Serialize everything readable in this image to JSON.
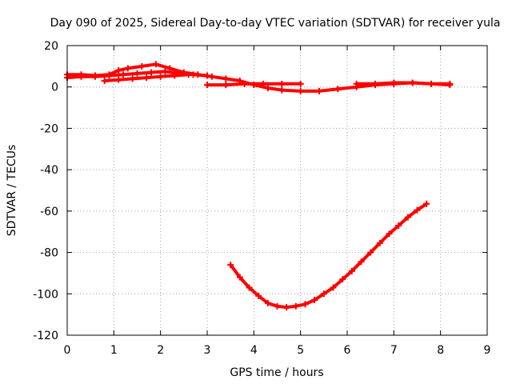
{
  "chart_data": {
    "type": "scatter",
    "title": "Day 090 of 2025, Sidereal Day-to-day VTEC variation (SDTVAR) for receiver yula",
    "xlabel": "GPS time / hours",
    "ylabel": "SDTVAR / TECUs",
    "xlim": [
      0,
      9
    ],
    "ylim": [
      -120,
      20
    ],
    "xticks": [
      0,
      1,
      2,
      3,
      4,
      5,
      6,
      7,
      8,
      9
    ],
    "yticks": [
      -120,
      -100,
      -80,
      -60,
      -40,
      -20,
      0,
      20
    ],
    "x_tick_labels": [
      "0",
      "1",
      "2",
      "3",
      "4",
      "5",
      "6",
      "7",
      "8",
      "9"
    ],
    "y_tick_labels": [
      "-120",
      "-100",
      "-80",
      "-60",
      "-40",
      "-20",
      "0",
      "20"
    ],
    "grid": true,
    "legend": "none",
    "marker": "plus",
    "series_color": "#ff0000",
    "series": [
      {
        "name": "track-a",
        "x": [
          0.0,
          0.3,
          0.6,
          0.9,
          1.1,
          1.3,
          1.6,
          1.9,
          2.2,
          2.5,
          2.8,
          3.1,
          3.4,
          3.7,
          4.0,
          4.3,
          4.6,
          5.0,
          5.4,
          5.8,
          6.2,
          6.6,
          7.0,
          7.4,
          7.8,
          8.2
        ],
        "y": [
          6,
          6,
          5.5,
          6,
          8,
          9,
          10,
          11,
          9,
          7,
          6,
          5,
          4,
          3,
          1,
          -0.5,
          -1.5,
          -2,
          -2,
          -1,
          0,
          1,
          1.5,
          2,
          1.5,
          1
        ]
      },
      {
        "name": "track-b",
        "x": [
          0.0,
          0.3,
          0.6,
          0.9,
          1.2,
          1.5,
          1.8,
          2.1,
          2.4,
          2.7,
          3.0
        ],
        "y": [
          4.5,
          5,
          5,
          5.5,
          6,
          6.5,
          7,
          7.5,
          6.5,
          6,
          5.5
        ]
      },
      {
        "name": "track-c",
        "x": [
          0.8,
          1.1,
          1.4,
          1.7,
          2.0,
          2.3,
          2.6
        ],
        "y": [
          3,
          3.5,
          4,
          4.5,
          5,
          5.5,
          6
        ]
      },
      {
        "name": "track-d",
        "x": [
          3.0,
          3.4,
          3.8,
          4.2,
          4.6,
          5.0
        ],
        "y": [
          1,
          1,
          1.5,
          1.5,
          1.5,
          1.5
        ]
      },
      {
        "name": "track-e",
        "x": [
          6.2,
          6.6,
          7.0,
          7.4,
          7.8,
          8.2
        ],
        "y": [
          1.5,
          1.5,
          2,
          2,
          1.5,
          1.5
        ]
      },
      {
        "name": "track-f",
        "x": [
          3.5,
          3.7,
          3.9,
          4.1,
          4.3,
          4.5,
          4.7,
          4.9,
          5.1,
          5.3,
          5.5,
          5.7,
          5.9,
          6.1,
          6.3,
          6.5,
          6.7,
          6.9,
          7.1,
          7.3,
          7.5,
          7.7
        ],
        "y": [
          -86,
          -92,
          -97,
          -101,
          -104.5,
          -106,
          -106.5,
          -106,
          -105,
          -103,
          -100,
          -97,
          -93,
          -89,
          -84.5,
          -80,
          -75.5,
          -71,
          -67,
          -63,
          -59.5,
          -56.5
        ]
      }
    ]
  }
}
